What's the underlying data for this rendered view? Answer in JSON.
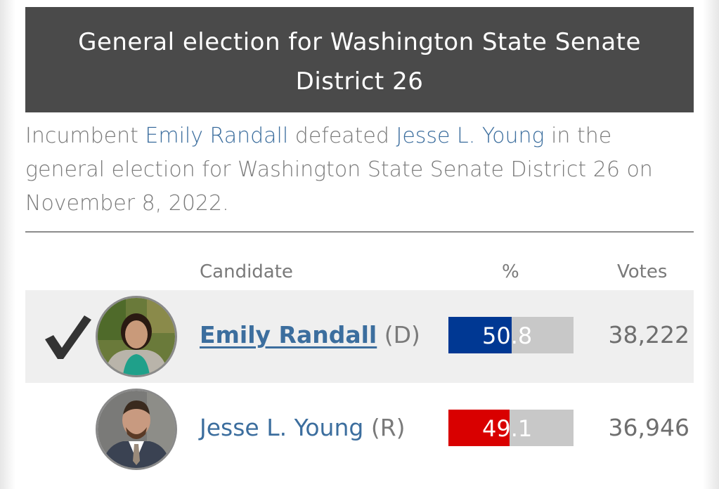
{
  "header": {
    "title_line1": "General election for Washington State Senate",
    "title_line2": "District 26"
  },
  "summary": {
    "word_incumbent": "Incumbent ",
    "winner_link": "Emily Randall",
    "word_defeated": " defeated ",
    "loser_link": "Jesse L. Young",
    "rest": " in the general election for Washington State Senate District 26 on November 8, 2022."
  },
  "table": {
    "headers": {
      "candidate": "Candidate",
      "percent": "%",
      "votes": "Votes"
    },
    "rows": [
      {
        "name": "Emily Randall",
        "party": "(D)",
        "percent": "50.8",
        "percent_value": 50.8,
        "votes": "38,222",
        "winner": true,
        "bar_color": "#003893"
      },
      {
        "name": "Jesse L. Young",
        "party": "(R)",
        "percent": "49.1",
        "percent_value": 49.1,
        "votes": "36,946",
        "winner": false,
        "bar_color": "#d90000"
      }
    ]
  },
  "colors": {
    "header_bg": "#4a4a4a",
    "link": "#3c6e9e",
    "muted_text": "#7a7a7a",
    "bar_track": "#c8c8c8"
  },
  "icons": {
    "winner_mark": "checkmark-icon"
  }
}
